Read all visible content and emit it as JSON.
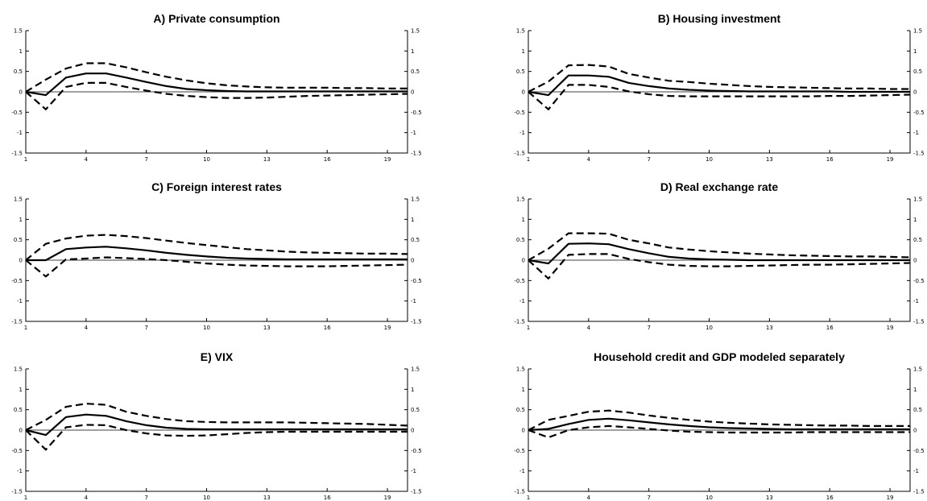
{
  "chart_data": [
    {
      "type": "line",
      "title": "A) Private consumption",
      "x": [
        1,
        2,
        3,
        4,
        5,
        6,
        7,
        8,
        9,
        10,
        11,
        12,
        13,
        14,
        15,
        16,
        17,
        18,
        19,
        20
      ],
      "xticks": [
        1,
        4,
        7,
        10,
        13,
        16,
        19
      ],
      "yticks": [
        -1.5,
        -1,
        -0.5,
        0,
        0.5,
        1,
        1.5
      ],
      "ytick_labels": [
        "-1.5",
        "-1",
        "-0.5",
        "0",
        "0.5",
        "1",
        "1.5"
      ],
      "ylim": [
        -1.5,
        1.5
      ],
      "xlim": [
        1,
        20
      ],
      "series": [
        {
          "style": "solid",
          "values": [
            0,
            -0.08,
            0.35,
            0.45,
            0.45,
            0.35,
            0.24,
            0.14,
            0.07,
            0.04,
            0.02,
            0.01,
            0.01,
            0.01,
            0.01,
            0.01,
            0.01,
            0.01,
            0.01,
            0.01
          ]
        },
        {
          "style": "dashed",
          "values": [
            0,
            0.3,
            0.57,
            0.7,
            0.7,
            0.6,
            0.48,
            0.37,
            0.28,
            0.21,
            0.16,
            0.13,
            0.11,
            0.1,
            0.1,
            0.1,
            0.09,
            0.09,
            0.08,
            0.08
          ]
        },
        {
          "style": "dashed",
          "values": [
            0,
            -0.43,
            0.12,
            0.22,
            0.22,
            0.12,
            0.03,
            -0.05,
            -0.1,
            -0.13,
            -0.15,
            -0.15,
            -0.14,
            -0.12,
            -0.1,
            -0.09,
            -0.08,
            -0.07,
            -0.06,
            -0.05
          ]
        }
      ]
    },
    {
      "type": "line",
      "title": "B) Housing investment",
      "x": [
        1,
        2,
        3,
        4,
        5,
        6,
        7,
        8,
        9,
        10,
        11,
        12,
        13,
        14,
        15,
        16,
        17,
        18,
        19,
        20
      ],
      "xticks": [
        1,
        4,
        7,
        10,
        13,
        16,
        19
      ],
      "yticks": [
        -1.5,
        -1,
        -0.5,
        0,
        0.5,
        1,
        1.5
      ],
      "ytick_labels": [
        "-1.5",
        "-1",
        "-0.5",
        "0",
        "0.5",
        "1",
        "1.5"
      ],
      "ylim": [
        -1.5,
        1.5
      ],
      "xlim": [
        1,
        20
      ],
      "series": [
        {
          "style": "solid",
          "values": [
            0,
            -0.08,
            0.4,
            0.4,
            0.37,
            0.22,
            0.14,
            0.08,
            0.05,
            0.03,
            0.02,
            0.01,
            0.01,
            0.01,
            0.01,
            0.01,
            0.0,
            0.0,
            0.0,
            0.0
          ]
        },
        {
          "style": "dashed",
          "values": [
            0,
            0.25,
            0.65,
            0.66,
            0.62,
            0.44,
            0.35,
            0.27,
            0.24,
            0.2,
            0.17,
            0.14,
            0.12,
            0.11,
            0.1,
            0.09,
            0.08,
            0.08,
            0.07,
            0.07
          ]
        },
        {
          "style": "dashed",
          "values": [
            0,
            -0.43,
            0.17,
            0.17,
            0.12,
            0.01,
            -0.06,
            -0.1,
            -0.11,
            -0.11,
            -0.11,
            -0.11,
            -0.11,
            -0.11,
            -0.11,
            -0.1,
            -0.1,
            -0.09,
            -0.08,
            -0.07
          ]
        }
      ]
    },
    {
      "type": "line",
      "title": "C) Foreign interest rates",
      "x": [
        1,
        2,
        3,
        4,
        5,
        6,
        7,
        8,
        9,
        10,
        11,
        12,
        13,
        14,
        15,
        16,
        17,
        18,
        19,
        20
      ],
      "xticks": [
        1,
        4,
        7,
        10,
        13,
        16,
        19
      ],
      "yticks": [
        -1.5,
        -1,
        -0.5,
        0,
        0.5,
        1,
        1.5
      ],
      "ytick_labels": [
        "-1.5",
        "-1",
        "-0.5",
        "0",
        "0.5",
        "1",
        "1.5"
      ],
      "ylim": [
        -1.5,
        1.5
      ],
      "xlim": [
        1,
        20
      ],
      "series": [
        {
          "style": "solid",
          "values": [
            0,
            0.0,
            0.27,
            0.31,
            0.33,
            0.29,
            0.24,
            0.18,
            0.13,
            0.09,
            0.06,
            0.04,
            0.03,
            0.02,
            0.02,
            0.02,
            0.02,
            0.02,
            0.02,
            0.02
          ]
        },
        {
          "style": "dashed",
          "values": [
            0,
            0.4,
            0.53,
            0.6,
            0.62,
            0.59,
            0.54,
            0.48,
            0.42,
            0.37,
            0.32,
            0.27,
            0.24,
            0.21,
            0.19,
            0.18,
            0.17,
            0.16,
            0.16,
            0.15
          ]
        },
        {
          "style": "dashed",
          "values": [
            0,
            -0.4,
            0.02,
            0.04,
            0.07,
            0.05,
            0.03,
            0.0,
            -0.04,
            -0.08,
            -0.11,
            -0.13,
            -0.14,
            -0.15,
            -0.15,
            -0.15,
            -0.14,
            -0.13,
            -0.12,
            -0.11
          ]
        }
      ]
    },
    {
      "type": "line",
      "title": "D) Real exchange rate",
      "x": [
        1,
        2,
        3,
        4,
        5,
        6,
        7,
        8,
        9,
        10,
        11,
        12,
        13,
        14,
        15,
        16,
        17,
        18,
        19,
        20
      ],
      "xticks": [
        1,
        4,
        7,
        10,
        13,
        16,
        19
      ],
      "yticks": [
        -1.5,
        -1,
        -0.5,
        0,
        0.5,
        1,
        1.5
      ],
      "ytick_labels": [
        "-1.5",
        "-1",
        "-0.5",
        "0",
        "0.5",
        "1",
        "1.5"
      ],
      "ylim": [
        -1.5,
        1.5
      ],
      "xlim": [
        1,
        20
      ],
      "series": [
        {
          "style": "solid",
          "values": [
            0,
            -0.08,
            0.4,
            0.41,
            0.39,
            0.27,
            0.17,
            0.08,
            0.04,
            0.02,
            0.01,
            0.0,
            0.0,
            0.0,
            0.0,
            0.0,
            0.0,
            0.0,
            0.0,
            0.0
          ]
        },
        {
          "style": "dashed",
          "values": [
            0,
            0.28,
            0.66,
            0.66,
            0.65,
            0.5,
            0.41,
            0.31,
            0.26,
            0.22,
            0.19,
            0.16,
            0.14,
            0.12,
            0.11,
            0.1,
            0.09,
            0.09,
            0.08,
            0.07
          ]
        },
        {
          "style": "dashed",
          "values": [
            0,
            -0.45,
            0.13,
            0.15,
            0.15,
            0.03,
            -0.05,
            -0.11,
            -0.14,
            -0.15,
            -0.15,
            -0.14,
            -0.13,
            -0.12,
            -0.11,
            -0.11,
            -0.1,
            -0.09,
            -0.08,
            -0.07
          ]
        }
      ]
    },
    {
      "type": "line",
      "title": "E) VIX",
      "x": [
        1,
        2,
        3,
        4,
        5,
        6,
        7,
        8,
        9,
        10,
        11,
        12,
        13,
        14,
        15,
        16,
        17,
        18,
        19,
        20
      ],
      "xticks": [
        1,
        4,
        7,
        10,
        13,
        16,
        19
      ],
      "yticks": [
        -1.5,
        -1,
        -0.5,
        0,
        0.5,
        1,
        1.5
      ],
      "ytick_labels": [
        "-1.5",
        "-1",
        "-0.5",
        "0",
        "0.5",
        "1",
        "1.5"
      ],
      "ylim": [
        -1.5,
        1.5
      ],
      "xlim": [
        1,
        20
      ],
      "series": [
        {
          "style": "solid",
          "values": [
            0,
            -0.12,
            0.32,
            0.38,
            0.35,
            0.22,
            0.12,
            0.06,
            0.03,
            0.02,
            0.02,
            0.02,
            0.02,
            0.02,
            0.02,
            0.02,
            0.02,
            0.02,
            0.02,
            0.02
          ]
        },
        {
          "style": "dashed",
          "values": [
            0,
            0.25,
            0.57,
            0.65,
            0.62,
            0.45,
            0.35,
            0.27,
            0.22,
            0.2,
            0.19,
            0.19,
            0.19,
            0.19,
            0.18,
            0.17,
            0.16,
            0.15,
            0.13,
            0.11
          ]
        },
        {
          "style": "dashed",
          "values": [
            0,
            -0.48,
            0.07,
            0.13,
            0.12,
            0.0,
            -0.08,
            -0.13,
            -0.14,
            -0.13,
            -0.1,
            -0.07,
            -0.05,
            -0.04,
            -0.04,
            -0.04,
            -0.04,
            -0.04,
            -0.04,
            -0.04
          ]
        }
      ]
    },
    {
      "type": "line",
      "title": "Household credit and GDP modeled separately",
      "x": [
        1,
        2,
        3,
        4,
        5,
        6,
        7,
        8,
        9,
        10,
        11,
        12,
        13,
        14,
        15,
        16,
        17,
        18,
        19,
        20
      ],
      "xticks": [
        1,
        4,
        7,
        10,
        13,
        16,
        19
      ],
      "yticks": [
        -1.5,
        -1,
        -0.5,
        0,
        0.5,
        1,
        1.5
      ],
      "ytick_labels": [
        "-1.5",
        "-1",
        "-0.5",
        "0",
        "0.5",
        "1",
        "1.5"
      ],
      "ylim": [
        -1.5,
        1.5
      ],
      "xlim": [
        1,
        20
      ],
      "series": [
        {
          "style": "solid",
          "values": [
            0,
            0.03,
            0.15,
            0.25,
            0.28,
            0.24,
            0.19,
            0.14,
            0.1,
            0.07,
            0.05,
            0.04,
            0.03,
            0.02,
            0.02,
            0.02,
            0.02,
            0.02,
            0.02,
            0.02
          ]
        },
        {
          "style": "dashed",
          "values": [
            0,
            0.25,
            0.35,
            0.45,
            0.48,
            0.43,
            0.36,
            0.3,
            0.25,
            0.21,
            0.18,
            0.16,
            0.14,
            0.13,
            0.12,
            0.11,
            0.11,
            0.1,
            0.1,
            0.1
          ]
        },
        {
          "style": "dashed",
          "values": [
            0,
            -0.18,
            0.0,
            0.07,
            0.1,
            0.07,
            0.03,
            -0.01,
            -0.04,
            -0.05,
            -0.06,
            -0.06,
            -0.06,
            -0.06,
            -0.05,
            -0.05,
            -0.05,
            -0.05,
            -0.05,
            -0.05
          ]
        }
      ]
    }
  ]
}
